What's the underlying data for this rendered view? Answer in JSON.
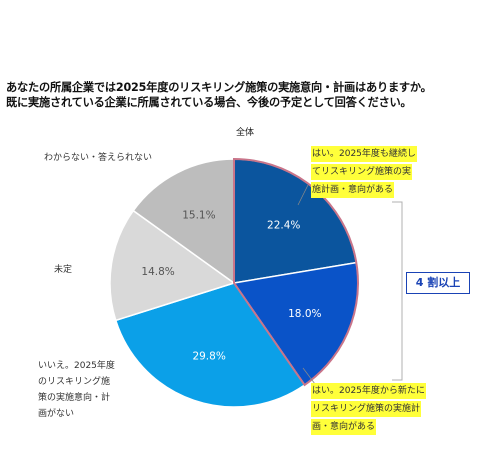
{
  "question": {
    "line1": "あなたの所属企業では2025年度のリスキリング施策の実施意向・計画はありますか。",
    "line2": "既に実施されている企業に所属されている場合、今後の予定として回答ください。"
  },
  "chart_data": {
    "type": "pie",
    "title": "全体",
    "slices": [
      {
        "label": [
          "はい。2025年度も継続し",
          "てリスキリング施策の実",
          "施計画・意向がある"
        ],
        "value": 22.4,
        "value_label": "22.4%",
        "color": "#0b559e"
      },
      {
        "label": [
          "はい。2025年度から新たに",
          "リスキリング施策の実施計",
          "画・意向がある"
        ],
        "value": 18.0,
        "value_label": "18.0%",
        "color": "#0a53c8"
      },
      {
        "label": [
          "いいえ。2025年度",
          "のリスキリング施",
          "策の実施意向・計",
          "画がない"
        ],
        "value": 29.8,
        "value_label": "29.8%",
        "color": "#0ba0e8"
      },
      {
        "label": [
          "未定"
        ],
        "value": 14.8,
        "value_label": "14.8%",
        "color": "#d9d9d9"
      },
      {
        "label": [
          "わからない・答えられない"
        ],
        "value": 15.1,
        "value_label": "15.1%",
        "color": "#bdbdbd"
      }
    ],
    "bracket_label": "4 割以上",
    "highlight_color": "#ffff3a",
    "accent_color": "#1a43b5"
  }
}
